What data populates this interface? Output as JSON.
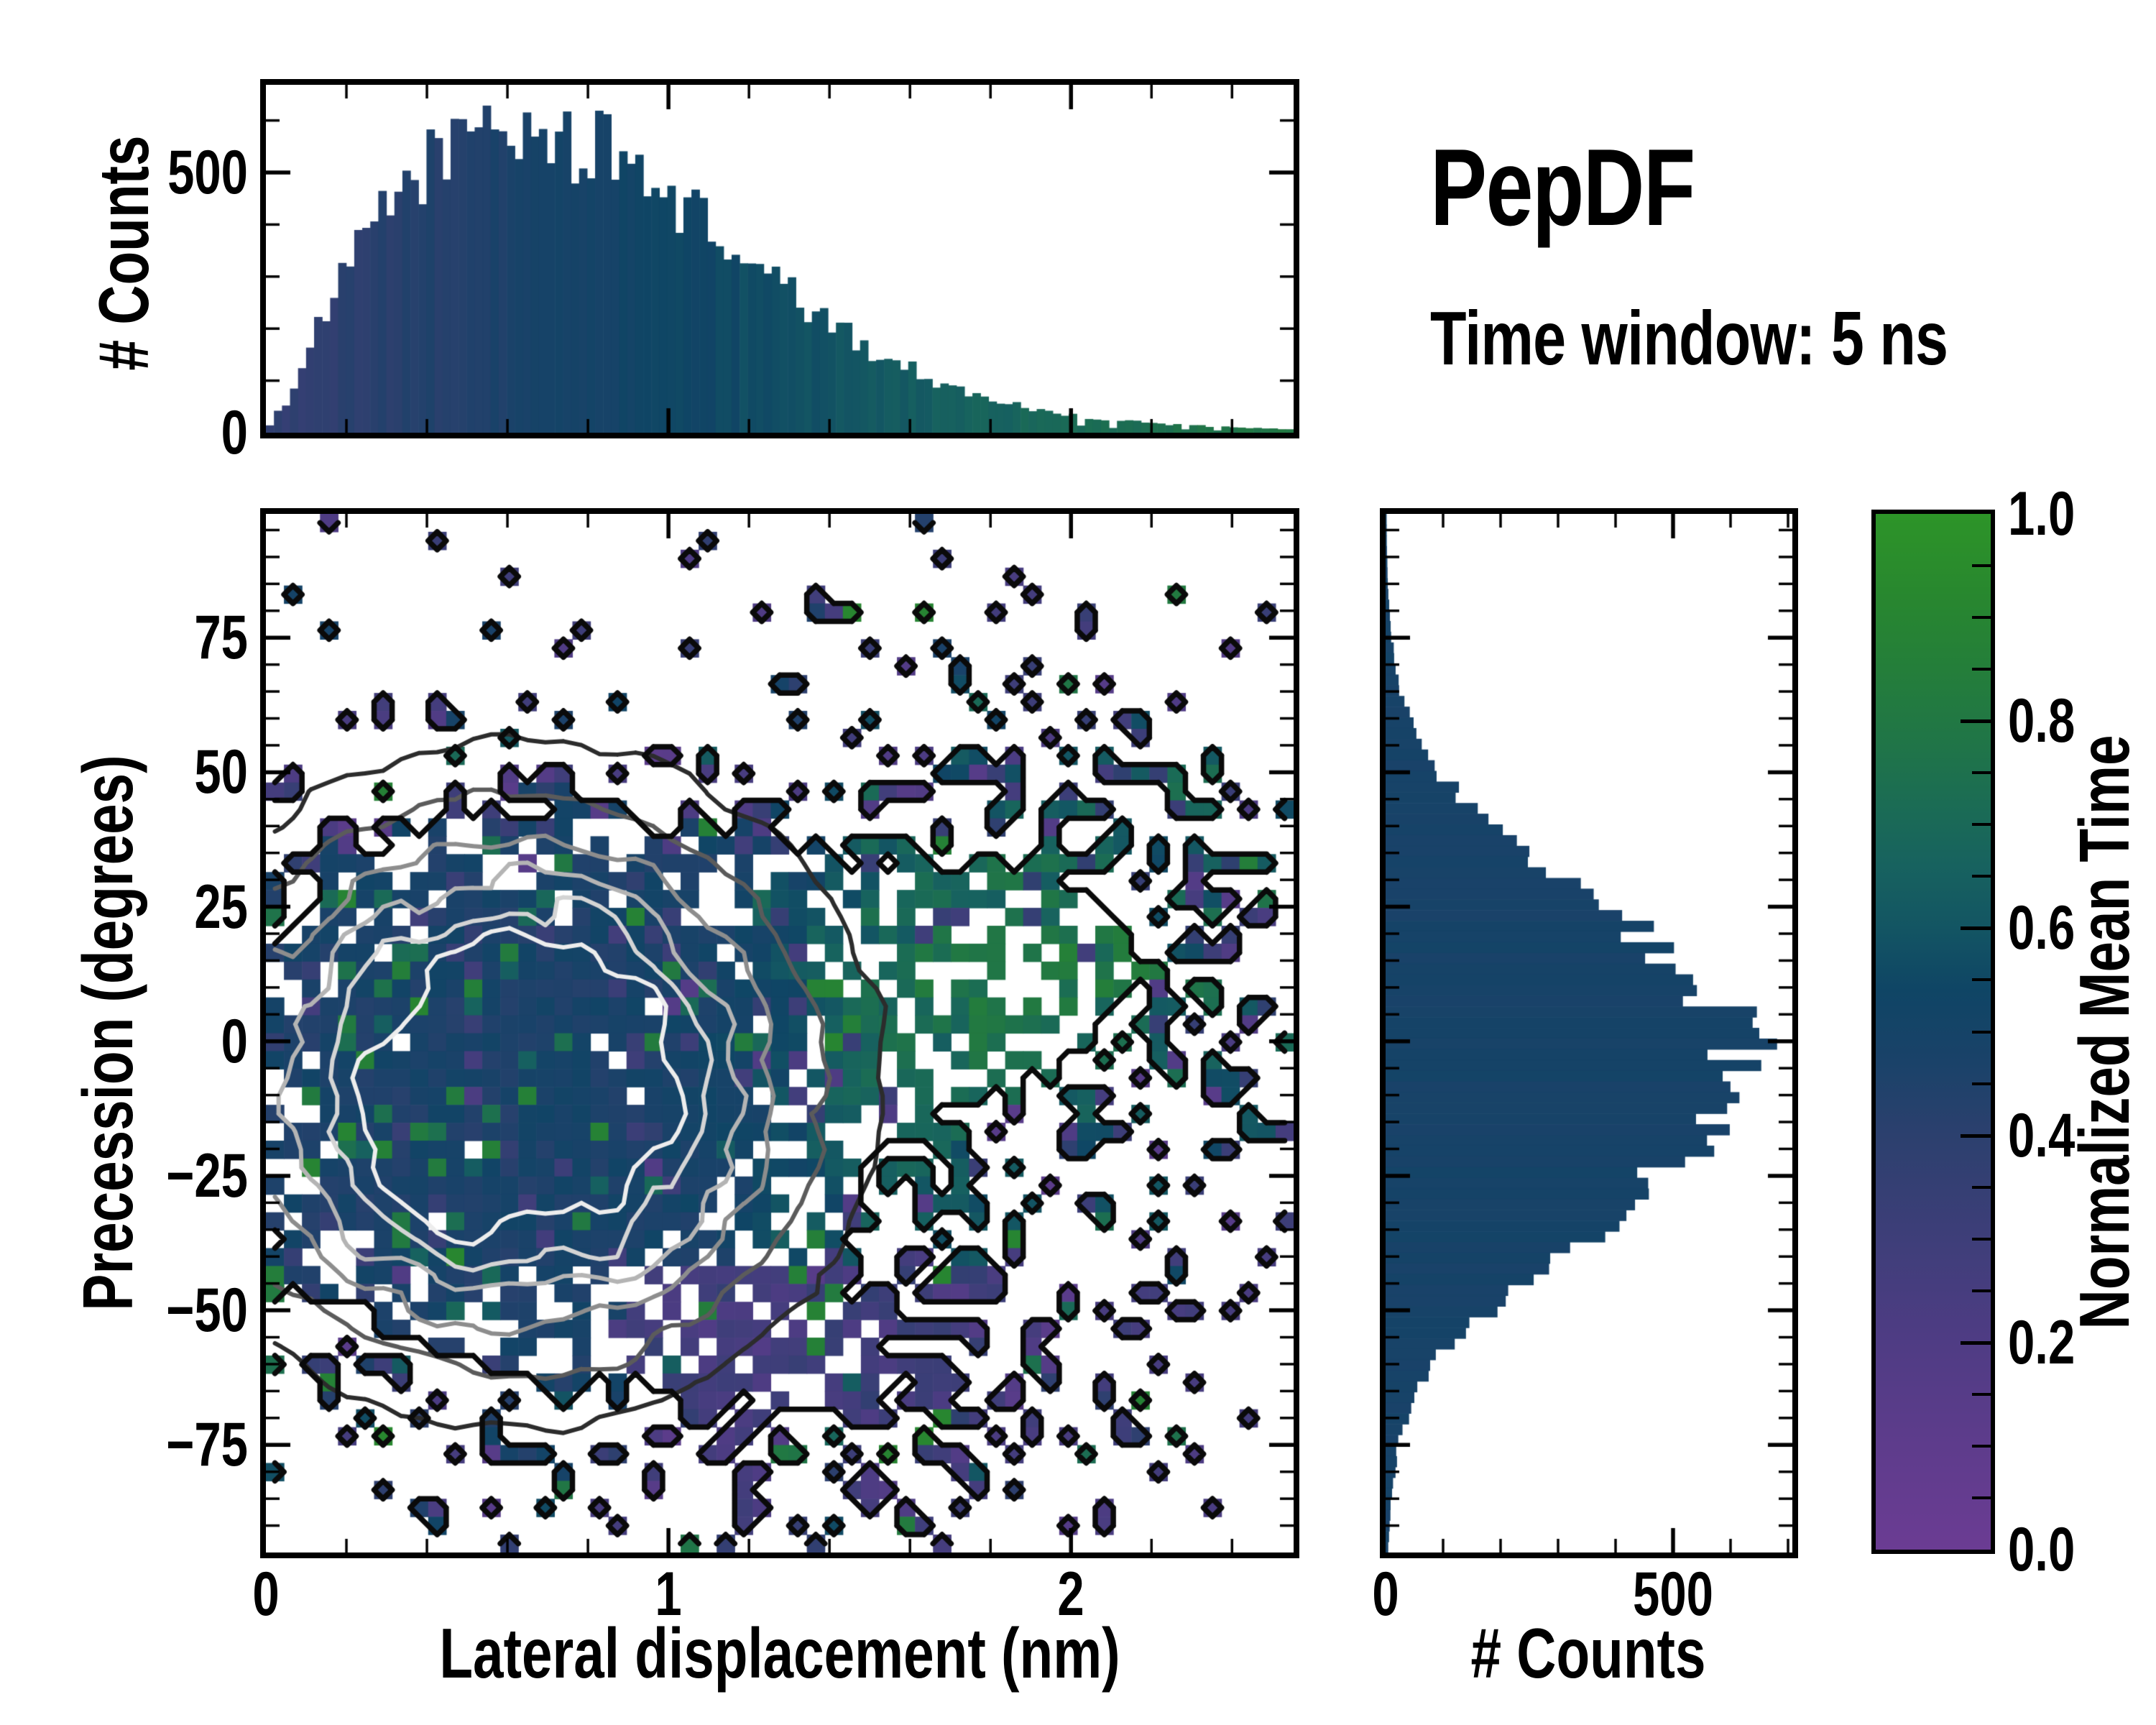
{
  "title": {
    "heading": "PepDF",
    "subtitle": "Time window: 5 ns"
  },
  "colors": {
    "background": "#ffffff",
    "axis": "#000000",
    "histogram_bar_base": "#12416a",
    "contour_grays": [
      "#ededed",
      "#d4d4d4",
      "#b4b4b4",
      "#8d8d8d",
      "#5b5b5b",
      "#2c2c2c"
    ],
    "outline_black": "#0a0a0a"
  },
  "chart_data": [
    {
      "id": "top-marginal",
      "type": "bar",
      "role": "marginal-histogram-of-x",
      "title": "",
      "xlabel": "",
      "ylabel": "# Counts",
      "xlim": [
        0,
        2.553
      ],
      "ylim": [
        0,
        668
      ],
      "yticks": [
        0,
        500
      ],
      "ytick_labels": [
        "0",
        "500"
      ],
      "yminor_step": 100,
      "xminor_step": 0.2,
      "bins": 128,
      "envelope_x": [
        0.0,
        0.05,
        0.15,
        0.25,
        0.35,
        0.45,
        0.55,
        0.65,
        0.75,
        0.85,
        0.95,
        1.05,
        1.15,
        1.25,
        1.35,
        1.45,
        1.55,
        1.65,
        1.75,
        1.85,
        1.95,
        2.05,
        2.15,
        2.25,
        2.35,
        2.45,
        2.55
      ],
      "envelope_counts": [
        5,
        60,
        230,
        380,
        480,
        550,
        590,
        580,
        555,
        540,
        490,
        430,
        360,
        300,
        235,
        185,
        140,
        105,
        75,
        55,
        40,
        30,
        22,
        16,
        12,
        9,
        7
      ],
      "bar_color_rule": "colormap(0.36 + 0.17*x)",
      "noise_fraction": 0.14
    },
    {
      "id": "joint-heatmap",
      "type": "heatmap",
      "xlabel": "Lateral displacement (nm)",
      "ylabel": "Precession (degrees)",
      "value_label": "Normalized Mean Time",
      "xlim": [
        0,
        2.553
      ],
      "ylim": [
        -95,
        98
      ],
      "xticks": [
        0,
        1,
        2
      ],
      "xtick_labels": [
        "0",
        "1",
        "2"
      ],
      "xminor_step": 0.2,
      "yticks": [
        75,
        50,
        25,
        0,
        -25,
        -50,
        -75
      ],
      "ytick_labels": [
        "75",
        "50",
        "25",
        "0",
        "−25",
        "−50",
        "−75"
      ],
      "yminor_step": 5,
      "grid": {
        "nx": 57,
        "ny": 58
      },
      "seed": 42,
      "density_model": {
        "core": {
          "cx": 0.62,
          "cy": -8,
          "sx": 0.47,
          "sy": 33,
          "amp": 1.45
        },
        "arm": {
          "cx": 1.85,
          "cy": 14,
          "sx": 0.52,
          "sy": 30,
          "amp": 0.55
        },
        "lower": {
          "cx": 1.5,
          "cy": -66,
          "sx": 0.45,
          "sy": 21,
          "amp": 0.42
        },
        "floor": 0.02,
        "cap": 0.97
      },
      "mean_time_model": {
        "core_base": 0.47,
        "core_jitter": 0.055,
        "arm_boost": 0.3,
        "arm_slope_deg_per_nm": 25,
        "arm_center_nm": 1.4,
        "arm_width_deg": 32,
        "arm_onset_nm": 1.35,
        "lower_right_shift": -0.22,
        "upper_band_purple_deg": 38
      },
      "contours": {
        "levels": [
          1.02,
          0.88,
          0.72,
          0.55,
          0.38,
          0.22
        ],
        "colors": [
          "#ededed",
          "#d4d4d4",
          "#b4b4b4",
          "#8d8d8d",
          "#5b5b5b",
          "#2c2c2c"
        ],
        "outline_level": 0.5,
        "outline_color": "#0a0a0a"
      }
    },
    {
      "id": "right-marginal",
      "type": "bar",
      "orientation": "horizontal",
      "role": "marginal-histogram-of-y",
      "xlabel": "# Counts",
      "ylabel": "",
      "xlim": [
        0,
        707
      ],
      "ylim": [
        -95,
        98
      ],
      "xticks": [
        0,
        500
      ],
      "xtick_labels": [
        "0",
        "500"
      ],
      "xminor_step": 100,
      "yminor_step": 5,
      "bins": 97,
      "envelope_y": [
        -95,
        -85,
        -75,
        -65,
        -55,
        -45,
        -35,
        -25,
        -15,
        -5,
        5,
        15,
        25,
        35,
        45,
        55,
        65,
        75,
        85,
        95
      ],
      "envelope_counts": [
        4,
        10,
        22,
        55,
        115,
        240,
        360,
        480,
        585,
        640,
        600,
        500,
        370,
        240,
        130,
        60,
        25,
        10,
        4,
        2
      ],
      "bar_color_rule": "colormap(0.49)",
      "noise_fraction": 0.12
    },
    {
      "id": "colorbar",
      "type": "colorbar",
      "label": "Normalized Mean Time",
      "range": [
        0.0,
        1.0
      ],
      "ticks": [
        0.0,
        0.2,
        0.4,
        0.6,
        0.8,
        1.0
      ],
      "tick_labels": [
        "0.0",
        "0.2",
        "0.4",
        "0.6",
        "0.8",
        "1.0"
      ],
      "minor_step": 0.05,
      "stops": [
        [
          0.0,
          "#6b3c93"
        ],
        [
          0.1,
          "#5e3c8c"
        ],
        [
          0.2,
          "#4f3c84"
        ],
        [
          0.3,
          "#3e3e79"
        ],
        [
          0.4,
          "#2c406e"
        ],
        [
          0.47,
          "#1a4269"
        ],
        [
          0.54,
          "#0f4565"
        ],
        [
          0.6,
          "#135563"
        ],
        [
          0.66,
          "#17625f"
        ],
        [
          0.72,
          "#1b6c54"
        ],
        [
          0.78,
          "#207547"
        ],
        [
          0.85,
          "#247e3a"
        ],
        [
          0.92,
          "#28872f"
        ],
        [
          1.0,
          "#2d9428"
        ]
      ]
    }
  ]
}
